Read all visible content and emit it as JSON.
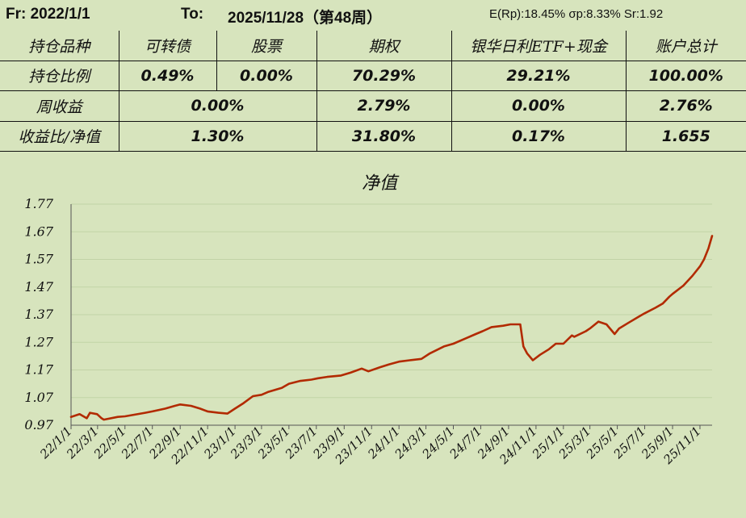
{
  "header": {
    "from": "Fr: 2022/1/1",
    "to_label": "To:",
    "to_value": "2025/11/28（第48周）",
    "stats": "E(Rp):18.45%  σp:8.33%  Sr:1.92"
  },
  "table": {
    "headers": [
      "持仓品种",
      "可转债",
      "股票",
      "期权",
      "银华日利ETF+现金",
      "账户总计"
    ],
    "rows": [
      {
        "label": "持仓比例",
        "cells": [
          "0.49%",
          "0.00%",
          "70.29%",
          "29.21%",
          "100.00%"
        ]
      },
      {
        "label": "周收益",
        "cells": [
          "0.00%",
          "2.79%",
          "0.00%",
          "2.76%"
        ]
      },
      {
        "label": "收益比/净值",
        "cells": [
          "1.30%",
          "31.80%",
          "0.17%",
          "1.655"
        ]
      }
    ]
  },
  "colors": {
    "line": "#b22a00",
    "background": "#d7e4bd",
    "grid": "#c2d3a6"
  },
  "chart_data": {
    "type": "line",
    "title": "净值",
    "ylim": [
      0.97,
      1.77
    ],
    "yticks": [
      "0.97",
      "1.07",
      "1.17",
      "1.27",
      "1.37",
      "1.47",
      "1.57",
      "1.67",
      "1.77"
    ],
    "xlim": [
      "2022-01-01",
      "2025-11-28"
    ],
    "xticks": [
      {
        "date": "2022-01-01",
        "label": "22/1/1"
      },
      {
        "date": "2022-03-01",
        "label": "22/3/1"
      },
      {
        "date": "2022-05-01",
        "label": "22/5/1"
      },
      {
        "date": "2022-07-01",
        "label": "22/7/1"
      },
      {
        "date": "2022-09-01",
        "label": "22/9/1"
      },
      {
        "date": "2022-11-01",
        "label": "22/11/1"
      },
      {
        "date": "2023-01-01",
        "label": "23/1/1"
      },
      {
        "date": "2023-03-01",
        "label": "23/3/1"
      },
      {
        "date": "2023-05-01",
        "label": "23/5/1"
      },
      {
        "date": "2023-07-01",
        "label": "23/7/1"
      },
      {
        "date": "2023-09-01",
        "label": "23/9/1"
      },
      {
        "date": "2023-11-01",
        "label": "23/11/1"
      },
      {
        "date": "2024-01-01",
        "label": "24/1/1"
      },
      {
        "date": "2024-03-01",
        "label": "24/3/1"
      },
      {
        "date": "2024-05-01",
        "label": "24/5/1"
      },
      {
        "date": "2024-07-01",
        "label": "24/7/1"
      },
      {
        "date": "2024-09-01",
        "label": "24/9/1"
      },
      {
        "date": "2024-11-01",
        "label": "24/11/1"
      },
      {
        "date": "2025-01-01",
        "label": "25/1/1"
      },
      {
        "date": "2025-03-01",
        "label": "25/3/1"
      },
      {
        "date": "2025-05-01",
        "label": "25/5/1"
      },
      {
        "date": "2025-07-01",
        "label": "25/7/1"
      },
      {
        "date": "2025-09-01",
        "label": "25/9/1"
      },
      {
        "date": "2025-11-01",
        "label": "25/11/1"
      }
    ],
    "grid": true,
    "x": [
      "2022-01-01",
      "2022-01-20",
      "2022-02-05",
      "2022-02-12",
      "2022-02-28",
      "2022-03-10",
      "2022-03-15",
      "2022-04-15",
      "2022-05-01",
      "2022-06-15",
      "2022-07-01",
      "2022-07-30",
      "2022-08-20",
      "2022-09-01",
      "2022-09-25",
      "2022-10-15",
      "2022-11-01",
      "2022-11-25",
      "2022-12-15",
      "2023-01-01",
      "2023-01-20",
      "2023-02-10",
      "2023-03-01",
      "2023-03-15",
      "2023-04-15",
      "2023-05-01",
      "2023-05-25",
      "2023-06-20",
      "2023-07-05",
      "2023-07-25",
      "2023-08-25",
      "2023-09-15",
      "2023-10-10",
      "2023-10-25",
      "2023-11-20",
      "2023-12-10",
      "2024-01-01",
      "2024-01-25",
      "2024-02-20",
      "2024-03-10",
      "2024-04-10",
      "2024-05-01",
      "2024-05-30",
      "2024-06-20",
      "2024-07-05",
      "2024-07-25",
      "2024-08-20",
      "2024-09-05",
      "2024-09-27",
      "2024-10-04",
      "2024-10-12",
      "2024-10-25",
      "2024-11-10",
      "2024-11-30",
      "2024-12-15",
      "2025-01-01",
      "2025-01-20",
      "2025-01-25",
      "2025-02-20",
      "2025-03-01",
      "2025-03-20",
      "2025-04-07",
      "2025-04-25",
      "2025-05-05",
      "2025-05-25",
      "2025-06-20",
      "2025-07-01",
      "2025-07-25",
      "2025-08-10",
      "2025-08-25",
      "2025-09-01",
      "2025-09-25",
      "2025-10-15",
      "2025-11-01",
      "2025-11-10",
      "2025-11-20",
      "2025-11-28"
    ],
    "y": [
      1.0,
      1.01,
      0.995,
      1.015,
      1.01,
      0.995,
      0.99,
      1.0,
      1.002,
      1.015,
      1.02,
      1.03,
      1.04,
      1.045,
      1.04,
      1.03,
      1.02,
      1.015,
      1.012,
      1.03,
      1.05,
      1.075,
      1.08,
      1.09,
      1.105,
      1.12,
      1.13,
      1.135,
      1.14,
      1.145,
      1.15,
      1.16,
      1.175,
      1.165,
      1.18,
      1.19,
      1.2,
      1.205,
      1.21,
      1.23,
      1.255,
      1.265,
      1.285,
      1.3,
      1.31,
      1.325,
      1.33,
      1.335,
      1.335,
      1.255,
      1.23,
      1.205,
      1.225,
      1.245,
      1.265,
      1.265,
      1.295,
      1.29,
      1.31,
      1.32,
      1.345,
      1.335,
      1.3,
      1.32,
      1.34,
      1.365,
      1.375,
      1.395,
      1.41,
      1.435,
      1.445,
      1.475,
      1.51,
      1.545,
      1.57,
      1.61,
      1.655
    ]
  }
}
